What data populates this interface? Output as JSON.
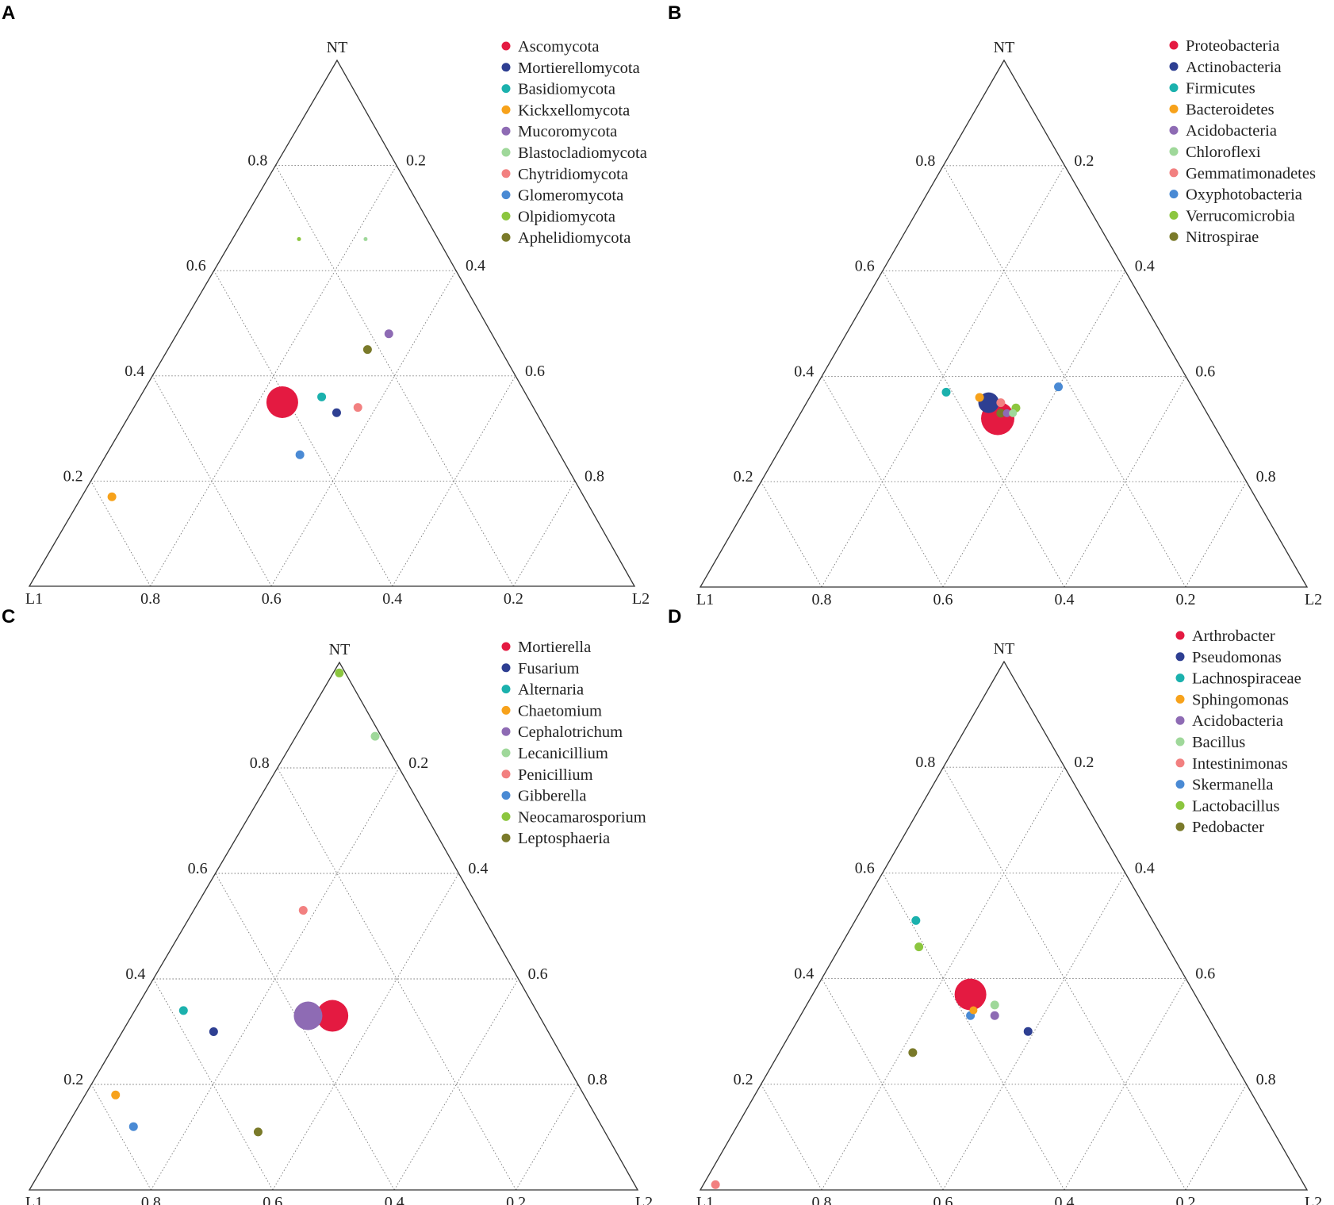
{
  "charts": [
    {
      "panel": "A",
      "type": "ternary-scatter",
      "vertices": {
        "top": "NT",
        "left": "L1",
        "right": "L2"
      },
      "bottom_ticks": [
        "0.8",
        "0.6",
        "0.4",
        "0.2"
      ],
      "left_ticks": [
        "0.8",
        "0.6",
        "0.4",
        "0.2"
      ],
      "right_ticks": [
        "0.2",
        "0.4",
        "0.6",
        "0.8"
      ],
      "legend": [
        {
          "label": "Ascomycota",
          "color": "#e41a41"
        },
        {
          "label": "Mortierellomycota",
          "color": "#2e3f92"
        },
        {
          "label": "Basidiomycota",
          "color": "#1bb1ad"
        },
        {
          "label": "Kickxellomycota",
          "color": "#f7a21b"
        },
        {
          "label": "Mucoromycota",
          "color": "#8e6bb4"
        },
        {
          "label": "Blastocladiomycota",
          "color": "#9fd89a"
        },
        {
          "label": "Chytridiomycota",
          "color": "#f28080"
        },
        {
          "label": "Glomeromycota",
          "color": "#4a8ad4"
        },
        {
          "label": "Olpidiomycota",
          "color": "#8cc63f"
        },
        {
          "label": "Aphelidiomycota",
          "color": "#7a7a2a"
        }
      ]
    },
    {
      "panel": "B",
      "type": "ternary-scatter",
      "vertices": {
        "top": "NT",
        "left": "L1",
        "right": "L2"
      },
      "bottom_ticks": [
        "0.8",
        "0.6",
        "0.4",
        "0.2"
      ],
      "left_ticks": [
        "0.8",
        "0.6",
        "0.4",
        "0.2"
      ],
      "right_ticks": [
        "0.2",
        "0.4",
        "0.6",
        "0.8"
      ],
      "legend": [
        {
          "label": "Proteobacteria",
          "color": "#e41a41"
        },
        {
          "label": "Actinobacteria",
          "color": "#2e3f92"
        },
        {
          "label": "Firmicutes",
          "color": "#1bb1ad"
        },
        {
          "label": "Bacteroidetes",
          "color": "#f7a21b"
        },
        {
          "label": "Acidobacteria",
          "color": "#8e6bb4"
        },
        {
          "label": "Chloroflexi",
          "color": "#9fd89a"
        },
        {
          "label": "Gemmatimonadetes",
          "color": "#f28080"
        },
        {
          "label": "Oxyphotobacteria",
          "color": "#4a8ad4"
        },
        {
          "label": "Verrucomicrobia",
          "color": "#8cc63f"
        },
        {
          "label": "Nitrospirae",
          "color": "#7a7a2a"
        }
      ]
    },
    {
      "panel": "C",
      "type": "ternary-scatter",
      "vertices": {
        "top": "NT",
        "left": "L1",
        "right": "L2"
      },
      "bottom_ticks": [
        "0.8",
        "0.6",
        "0.4",
        "0.2"
      ],
      "left_ticks": [
        "0.8",
        "0.6",
        "0.4",
        "0.2"
      ],
      "right_ticks": [
        "0.2",
        "0.4",
        "0.6",
        "0.8"
      ],
      "legend": [
        {
          "label": "Mortierella",
          "color": "#e41a41"
        },
        {
          "label": "Fusarium",
          "color": "#2e3f92"
        },
        {
          "label": "Alternaria",
          "color": "#1bb1ad"
        },
        {
          "label": "Chaetomium",
          "color": "#f7a21b"
        },
        {
          "label": "Cephalotrichum",
          "color": "#8e6bb4"
        },
        {
          "label": "Lecanicillium",
          "color": "#9fd89a"
        },
        {
          "label": "Penicillium",
          "color": "#f28080"
        },
        {
          "label": "Gibberella",
          "color": "#4a8ad4"
        },
        {
          "label": "Neocamarosporium",
          "color": "#8cc63f"
        },
        {
          "label": "Leptosphaeria",
          "color": "#7a7a2a"
        }
      ]
    },
    {
      "panel": "D",
      "type": "ternary-scatter",
      "vertices": {
        "top": "NT",
        "left": "L1",
        "right": "L2"
      },
      "bottom_ticks": [
        "0.8",
        "0.6",
        "0.4",
        "0.2"
      ],
      "left_ticks": [
        "0.8",
        "0.6",
        "0.4",
        "0.2"
      ],
      "right_ticks": [
        "0.2",
        "0.4",
        "0.6",
        "0.8"
      ],
      "legend": [
        {
          "label": "Arthrobacter",
          "color": "#e41a41"
        },
        {
          "label": "Pseudomonas",
          "color": "#2e3f92"
        },
        {
          "label": "Lachnospiraceae",
          "color": "#1bb1ad"
        },
        {
          "label": "Sphingomonas",
          "color": "#f7a21b"
        },
        {
          "label": "Acidobacteria",
          "color": "#8e6bb4"
        },
        {
          "label": "Bacillus",
          "color": "#9fd89a"
        },
        {
          "label": "Intestinimonas",
          "color": "#f28080"
        },
        {
          "label": "Skermanella",
          "color": "#4a8ad4"
        },
        {
          "label": "Lactobacillus",
          "color": "#8cc63f"
        },
        {
          "label": "Pedobacter",
          "color": "#7a7a2a"
        }
      ]
    }
  ],
  "chart_data": [
    {
      "type": "scatter",
      "subtype": "ternary",
      "panel": "A",
      "components": [
        "NT",
        "L1",
        "L2"
      ],
      "points": [
        {
          "name": "Ascomycota",
          "NT": 0.35,
          "L1": 0.41,
          "L2": 0.24,
          "size": 20
        },
        {
          "name": "Mortierellomycota",
          "NT": 0.33,
          "L1": 0.33,
          "L2": 0.34,
          "size": 5.5
        },
        {
          "name": "Basidiomycota",
          "NT": 0.36,
          "L1": 0.34,
          "L2": 0.3,
          "size": 5.5
        },
        {
          "name": "Kickxellomycota",
          "NT": 0.17,
          "L1": 0.78,
          "L2": 0.05,
          "size": 5.5
        },
        {
          "name": "Mucoromycota",
          "NT": 0.48,
          "L1": 0.17,
          "L2": 0.35,
          "size": 5.5
        },
        {
          "name": "Blastocladiomycota",
          "NT": 0.66,
          "L1": 0.12,
          "L2": 0.22,
          "size": 2.5
        },
        {
          "name": "Chytridiomycota",
          "NT": 0.34,
          "L1": 0.29,
          "L2": 0.37,
          "size": 5.5
        },
        {
          "name": "Glomeromycota",
          "NT": 0.25,
          "L1": 0.43,
          "L2": 0.32,
          "size": 5.5
        },
        {
          "name": "Olpidiomycota",
          "NT": 0.66,
          "L1": 0.23,
          "L2": 0.11,
          "size": 2.5
        },
        {
          "name": "Aphelidiomycota",
          "NT": 0.45,
          "L1": 0.22,
          "L2": 0.33,
          "size": 5.5
        }
      ]
    },
    {
      "type": "scatter",
      "subtype": "ternary",
      "panel": "B",
      "components": [
        "NT",
        "L1",
        "L2"
      ],
      "points": [
        {
          "name": "Proteobacteria",
          "NT": 0.32,
          "L1": 0.35,
          "L2": 0.33,
          "size": 21
        },
        {
          "name": "Actinobacteria",
          "NT": 0.35,
          "L1": 0.35,
          "L2": 0.3,
          "size": 13
        },
        {
          "name": "Firmicutes",
          "NT": 0.37,
          "L1": 0.41,
          "L2": 0.22,
          "size": 5.5
        },
        {
          "name": "Bacteroidetes",
          "NT": 0.36,
          "L1": 0.36,
          "L2": 0.28,
          "size": 5.5
        },
        {
          "name": "Acidobacteria",
          "NT": 0.33,
          "L1": 0.33,
          "L2": 0.34,
          "size": 5
        },
        {
          "name": "Chloroflexi",
          "NT": 0.33,
          "L1": 0.32,
          "L2": 0.35,
          "size": 5
        },
        {
          "name": "Gemmatimonadetes",
          "NT": 0.35,
          "L1": 0.33,
          "L2": 0.32,
          "size": 5.5
        },
        {
          "name": "Oxyphotobacteria",
          "NT": 0.38,
          "L1": 0.22,
          "L2": 0.4,
          "size": 5.5
        },
        {
          "name": "Verrucomicrobia",
          "NT": 0.34,
          "L1": 0.31,
          "L2": 0.35,
          "size": 5.5
        },
        {
          "name": "Nitrospirae",
          "NT": 0.33,
          "L1": 0.34,
          "L2": 0.33,
          "size": 5.5
        }
      ]
    },
    {
      "type": "scatter",
      "subtype": "ternary",
      "panel": "C",
      "components": [
        "NT",
        "L1",
        "L2"
      ],
      "points": [
        {
          "name": "Mortierella",
          "NT": 0.33,
          "L1": 0.34,
          "L2": 0.33,
          "size": 20
        },
        {
          "name": "Fusarium",
          "NT": 0.3,
          "L1": 0.55,
          "L2": 0.15,
          "size": 5.5
        },
        {
          "name": "Alternaria",
          "NT": 0.34,
          "L1": 0.58,
          "L2": 0.08,
          "size": 5.5
        },
        {
          "name": "Chaetomium",
          "NT": 0.18,
          "L1": 0.77,
          "L2": 0.05,
          "size": 5.5
        },
        {
          "name": "Cephalotrichum",
          "NT": 0.33,
          "L1": 0.38,
          "L2": 0.29,
          "size": 18
        },
        {
          "name": "Lecanicillium",
          "NT": 0.86,
          "L1": 0.01,
          "L2": 0.13,
          "size": 5.5
        },
        {
          "name": "Penicillium",
          "NT": 0.53,
          "L1": 0.29,
          "L2": 0.18,
          "size": 5.5
        },
        {
          "name": "Gibberella",
          "NT": 0.12,
          "L1": 0.77,
          "L2": 0.11,
          "size": 5.5
        },
        {
          "name": "Neocamarosporium",
          "NT": 0.98,
          "L1": 0.01,
          "L2": 0.01,
          "size": 5.5
        },
        {
          "name": "Leptosphaeria",
          "NT": 0.11,
          "L1": 0.57,
          "L2": 0.32,
          "size": 5.5
        }
      ]
    },
    {
      "type": "scatter",
      "subtype": "ternary",
      "panel": "D",
      "components": [
        "NT",
        "L1",
        "L2"
      ],
      "points": [
        {
          "name": "Arthrobacter",
          "NT": 0.37,
          "L1": 0.37,
          "L2": 0.26,
          "size": 20
        },
        {
          "name": "Pseudomonas",
          "NT": 0.3,
          "L1": 0.31,
          "L2": 0.39,
          "size": 5.5
        },
        {
          "name": "Lachnospiraceae",
          "NT": 0.51,
          "L1": 0.39,
          "L2": 0.1,
          "size": 5.5
        },
        {
          "name": "Sphingomonas",
          "NT": 0.34,
          "L1": 0.38,
          "L2": 0.28,
          "size": 5
        },
        {
          "name": "Acidobacteria",
          "NT": 0.33,
          "L1": 0.35,
          "L2": 0.32,
          "size": 5.5
        },
        {
          "name": "Bacillus",
          "NT": 0.35,
          "L1": 0.34,
          "L2": 0.31,
          "size": 5.5
        },
        {
          "name": "Intestinimonas",
          "NT": 0.01,
          "L1": 0.97,
          "L2": 0.02,
          "size": 5.5
        },
        {
          "name": "Skermanella",
          "NT": 0.33,
          "L1": 0.39,
          "L2": 0.28,
          "size": 5.5
        },
        {
          "name": "Lactobacillus",
          "NT": 0.46,
          "L1": 0.41,
          "L2": 0.13,
          "size": 5.5
        },
        {
          "name": "Pedobacter",
          "NT": 0.26,
          "L1": 0.52,
          "L2": 0.22,
          "size": 5.5
        }
      ]
    }
  ]
}
